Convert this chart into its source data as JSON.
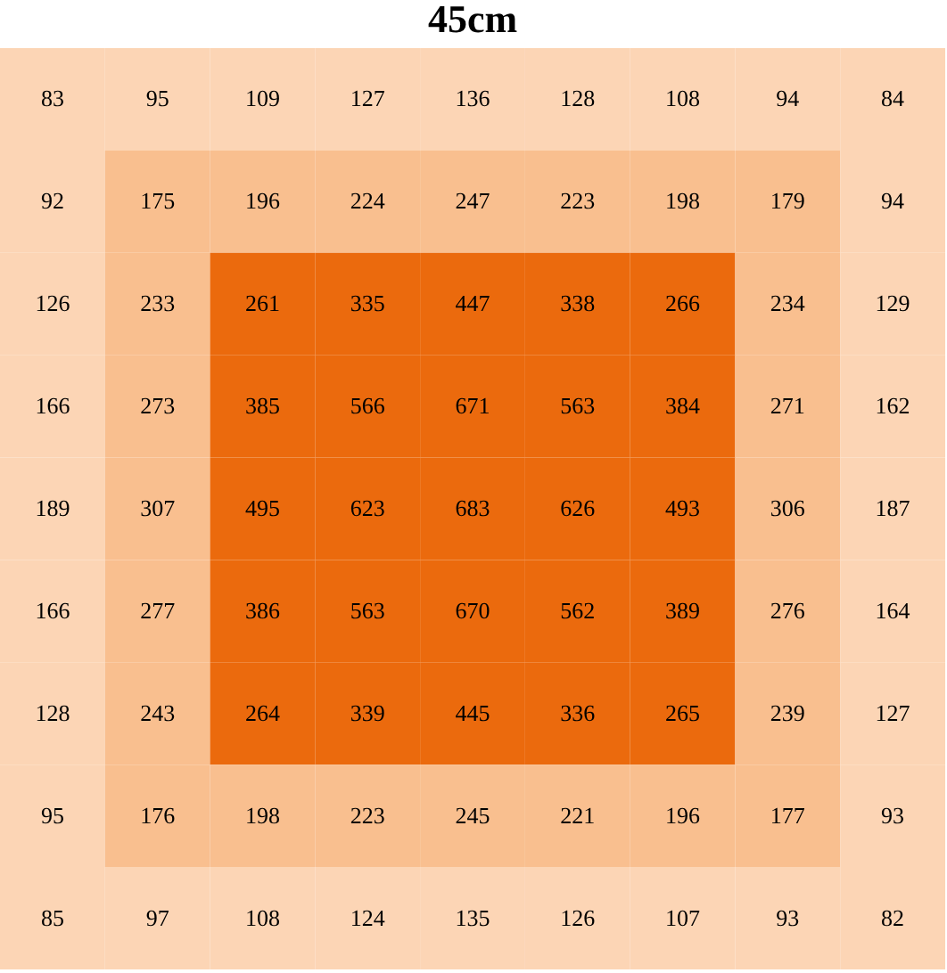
{
  "chart_data": {
    "type": "heatmap",
    "title": "45cm",
    "categories": [
      null,
      null,
      null,
      null,
      null,
      null,
      null,
      null,
      null
    ],
    "y_categories": [
      null,
      null,
      null,
      null,
      null,
      null,
      null,
      null,
      null
    ],
    "cells": [
      [
        83,
        95,
        109,
        127,
        136,
        128,
        108,
        94,
        84
      ],
      [
        92,
        175,
        196,
        224,
        247,
        223,
        198,
        179,
        94
      ],
      [
        126,
        233,
        261,
        335,
        447,
        338,
        266,
        234,
        129
      ],
      [
        166,
        273,
        385,
        566,
        671,
        563,
        384,
        271,
        162
      ],
      [
        189,
        307,
        495,
        623,
        683,
        626,
        493,
        306,
        187
      ],
      [
        166,
        277,
        386,
        563,
        670,
        562,
        389,
        276,
        164
      ],
      [
        128,
        243,
        264,
        339,
        445,
        336,
        265,
        239,
        127
      ],
      [
        95,
        176,
        198,
        223,
        245,
        221,
        196,
        177,
        93
      ],
      [
        85,
        97,
        108,
        124,
        135,
        126,
        107,
        93,
        82
      ]
    ],
    "colors": [
      [
        "#fcd5b5",
        "#fcd5b5",
        "#fcd5b5",
        "#fcd5b5",
        "#fcd5b5",
        "#fcd5b5",
        "#fcd5b5",
        "#fcd5b5",
        "#fcd5b5"
      ],
      [
        "#fcd5b5",
        "#f9bf8f",
        "#f9bf8f",
        "#f9bf8f",
        "#f9bf8f",
        "#f9bf8f",
        "#f9bf8f",
        "#f9bf8f",
        "#fcd5b5"
      ],
      [
        "#fcd5b5",
        "#f9bf8f",
        "#eb6a0d",
        "#eb6a0d",
        "#eb6a0d",
        "#eb6a0d",
        "#eb6a0d",
        "#f9bf8f",
        "#fcd5b5"
      ],
      [
        "#fcd5b5",
        "#f9bf8f",
        "#eb6a0d",
        "#eb6a0d",
        "#eb6a0d",
        "#eb6a0d",
        "#eb6a0d",
        "#f9bf8f",
        "#fcd5b5"
      ],
      [
        "#fcd5b5",
        "#f9bf8f",
        "#eb6a0d",
        "#eb6a0d",
        "#eb6a0d",
        "#eb6a0d",
        "#eb6a0d",
        "#f9bf8f",
        "#fcd5b5"
      ],
      [
        "#fcd5b5",
        "#f9bf8f",
        "#eb6a0d",
        "#eb6a0d",
        "#eb6a0d",
        "#eb6a0d",
        "#eb6a0d",
        "#f9bf8f",
        "#fcd5b5"
      ],
      [
        "#fcd5b5",
        "#f9bf8f",
        "#eb6a0d",
        "#eb6a0d",
        "#eb6a0d",
        "#eb6a0d",
        "#eb6a0d",
        "#f9bf8f",
        "#fcd5b5"
      ],
      [
        "#fcd5b5",
        "#f9bf8f",
        "#f9bf8f",
        "#f9bf8f",
        "#f9bf8f",
        "#f9bf8f",
        "#f9bf8f",
        "#f9bf8f",
        "#fcd5b5"
      ],
      [
        "#fcd5b5",
        "#fcd5b5",
        "#fcd5b5",
        "#fcd5b5",
        "#fcd5b5",
        "#fcd5b5",
        "#fcd5b5",
        "#fcd5b5",
        "#fcd5b5"
      ]
    ],
    "tick_labels": false,
    "data_labels": true
  }
}
